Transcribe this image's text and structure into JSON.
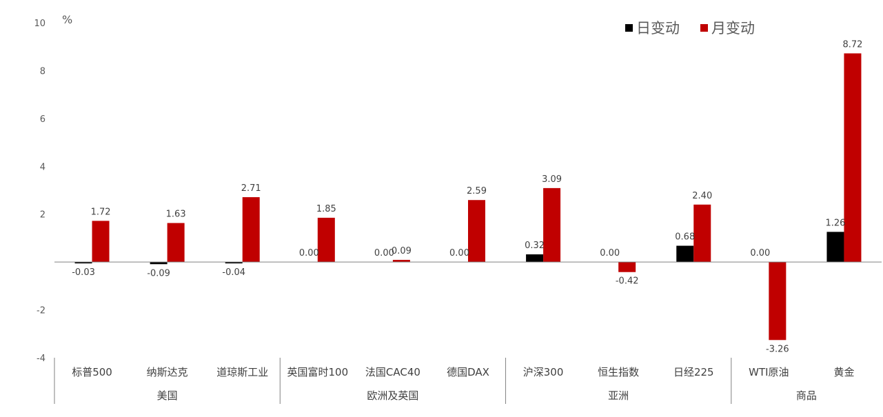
{
  "chart_data": {
    "type": "bar",
    "unit": "%",
    "categories": [
      "标普500",
      "纳斯达克",
      "道琼斯工业",
      "英国富时100",
      "法国CAC40",
      "德国DAX",
      "沪深300",
      "恒生指数",
      "日经225",
      "WTI原油",
      "黄金"
    ],
    "groups": [
      {
        "label": "美国",
        "count": 3
      },
      {
        "label": "欧洲及英国",
        "count": 3
      },
      {
        "label": "亚洲",
        "count": 3
      },
      {
        "label": "商品",
        "count": 2
      }
    ],
    "series": [
      {
        "name": "日变动",
        "color": "#000000",
        "values": [
          -0.03,
          -0.09,
          -0.04,
          0.0,
          0.0,
          0.0,
          0.32,
          0.0,
          0.68,
          0.0,
          1.26
        ]
      },
      {
        "name": "月变动",
        "color": "#C00000",
        "values": [
          1.72,
          1.63,
          2.71,
          1.85,
          0.09,
          2.59,
          3.09,
          -0.42,
          2.4,
          -3.26,
          8.72
        ]
      }
    ],
    "ylim": [
      -4,
      10
    ],
    "yticks": [
      "-4",
      "-2",
      "",
      "2",
      "4",
      "6",
      "8",
      "10"
    ],
    "legend_position": "top-right",
    "grid": false
  }
}
